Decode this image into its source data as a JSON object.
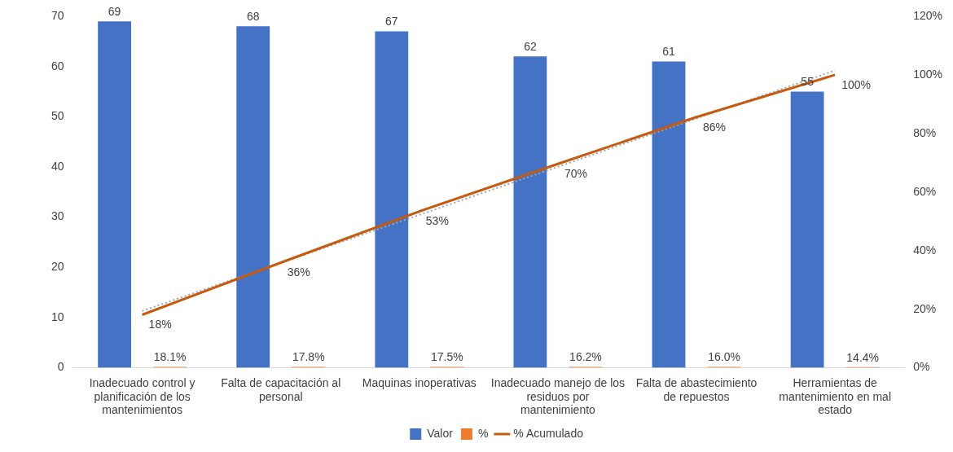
{
  "chart_data": {
    "type": "bar",
    "categories": [
      "Inadecuado control y planificación de los mantenimientos",
      "Falta de capacitación al personal",
      "Maquinas inoperativas",
      "Inadecuado manejo de los residuos por mantenimiento",
      "Falta de abastecimiento de repuestos",
      "Herramientas de mantenimiento en mal estado"
    ],
    "series": [
      {
        "name": "Valor",
        "color": "#4472c4",
        "values": [
          69,
          68,
          67,
          62,
          61,
          55
        ],
        "data_labels": true
      },
      {
        "name": "%",
        "color": "#ed7d31",
        "values": [
          0.181,
          0.178,
          0.175,
          0.162,
          0.16,
          0.144
        ],
        "value_labels": [
          "18.1%",
          "17.8%",
          "17.5%",
          "16.2%",
          "16.0%",
          "14.4%"
        ]
      },
      {
        "name": "% Acumulado",
        "type": "line",
        "axis": "y2",
        "color": "#c55a11",
        "marker": "none",
        "line_style": "solid",
        "values": [
          18.1,
          35.9,
          53.4,
          69.6,
          85.6,
          100
        ],
        "value_labels": [
          "18%",
          "36%",
          "53%",
          "70%",
          "86%",
          "100%"
        ]
      },
      {
        "type": "line",
        "axis": "y2",
        "color": "#a5a5a5",
        "marker": "none",
        "line_style": "dotted",
        "values": [
          19.4,
          35.8,
          52.2,
          68.6,
          85.1,
          101.5
        ]
      }
    ],
    "ylim": [
      0,
      70
    ],
    "yticks": [
      0,
      10,
      20,
      30,
      40,
      50,
      60,
      70
    ],
    "y2lim": [
      0,
      120
    ],
    "y2ticks": [
      {
        "value": 0,
        "label": "0%"
      },
      {
        "value": 20,
        "label": "20%"
      },
      {
        "value": 40,
        "label": "40%"
      },
      {
        "value": 60,
        "label": "60%"
      },
      {
        "value": 80,
        "label": "80%"
      },
      {
        "value": 100,
        "label": "100%"
      },
      {
        "value": 120,
        "label": "120%"
      }
    ],
    "grid": false,
    "legend": "bottom"
  }
}
